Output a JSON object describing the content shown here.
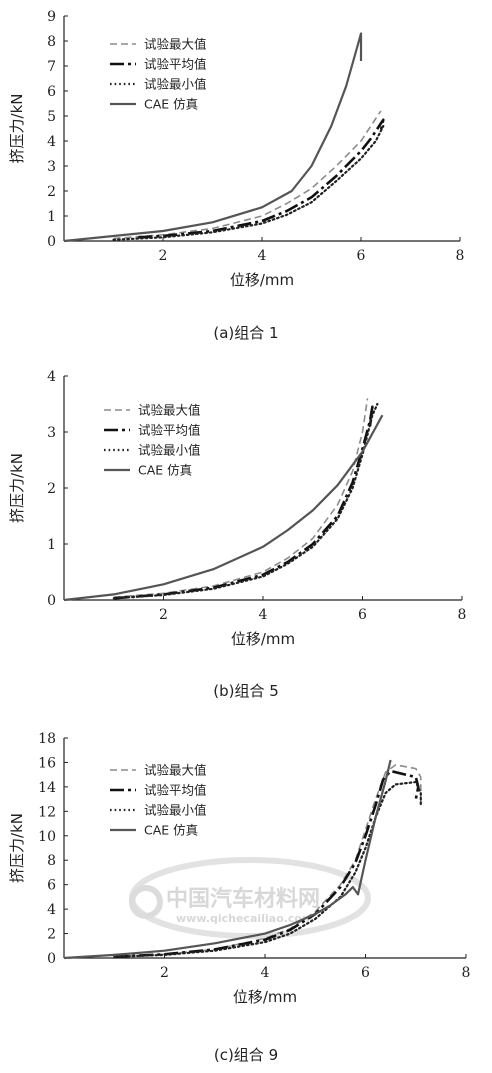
{
  "style": {
    "series_colors": [
      "#8c8c8c",
      "#111111",
      "#222222",
      "#555555"
    ],
    "axis_color": "#222222"
  },
  "watermark": {
    "name": "中国汽车材料网",
    "url": "www.qichecailiao.com",
    "color": "#d8d8d8"
  },
  "chart_data": [
    {
      "type": "line",
      "caption": "(a)组合 1",
      "xlabel": "位移/mm",
      "ylabel": "挤压力/kN",
      "xlim": [
        0,
        8
      ],
      "ylim": [
        0,
        9
      ],
      "xticks": [
        0,
        2,
        4,
        6,
        8
      ],
      "xtick_labels": [
        "",
        "2",
        "4",
        "6",
        "8"
      ],
      "yticks": [
        0,
        1,
        2,
        3,
        4,
        5,
        6,
        7,
        8,
        9
      ],
      "ytick_labels": [
        "0",
        "1",
        "2",
        "3",
        "4",
        "5",
        "6",
        "7",
        "8",
        "9"
      ],
      "legend_position": "top-left",
      "series": [
        {
          "name": "试验最大值",
          "style": "dashed",
          "x": [
            1.0,
            2.0,
            3.0,
            4.0,
            4.5,
            5.0,
            5.5,
            6.0,
            6.3,
            6.4
          ],
          "y": [
            0.1,
            0.25,
            0.5,
            1.0,
            1.5,
            2.1,
            3.0,
            4.0,
            4.9,
            5.2
          ]
        },
        {
          "name": "试验平均值",
          "style": "dashdot",
          "x": [
            1.5,
            2.0,
            3.0,
            4.0,
            4.5,
            5.0,
            5.5,
            6.0,
            6.2,
            6.4,
            6.45,
            6.4
          ],
          "y": [
            0.15,
            0.2,
            0.4,
            0.8,
            1.2,
            1.75,
            2.6,
            3.6,
            4.1,
            4.7,
            4.85,
            4.4
          ]
        },
        {
          "name": "试验最小值",
          "style": "dotted",
          "x": [
            1.0,
            2.0,
            3.0,
            4.0,
            4.5,
            5.0,
            5.5,
            6.0,
            6.3,
            6.45
          ],
          "y": [
            0.05,
            0.15,
            0.35,
            0.7,
            1.05,
            1.55,
            2.4,
            3.3,
            4.0,
            4.6
          ]
        },
        {
          "name": "CAE 仿真",
          "style": "solid",
          "x": [
            0,
            1.0,
            2.0,
            3.0,
            4.0,
            4.6,
            5.0,
            5.4,
            5.7,
            5.9,
            6.0,
            6.0
          ],
          "y": [
            0,
            0.2,
            0.4,
            0.75,
            1.35,
            2.0,
            3.0,
            4.6,
            6.2,
            7.6,
            8.3,
            7.2
          ]
        }
      ]
    },
    {
      "type": "line",
      "caption": "(b)组合 5",
      "xlabel": "位移/mm",
      "ylabel": "挤压力/kN",
      "xlim": [
        0,
        8
      ],
      "ylim": [
        0,
        4
      ],
      "xticks": [
        0,
        2,
        4,
        6,
        8
      ],
      "xtick_labels": [
        "",
        "2",
        "4",
        "6",
        "8"
      ],
      "yticks": [
        0,
        1,
        2,
        3,
        4
      ],
      "ytick_labels": [
        "0",
        "1",
        "2",
        "3",
        "4"
      ],
      "legend_position": "top-left",
      "series": [
        {
          "name": "试验最大值",
          "style": "dashed",
          "x": [
            1.0,
            2.0,
            3.0,
            4.0,
            4.5,
            5.0,
            5.5,
            5.8,
            6.0,
            6.1
          ],
          "y": [
            0.05,
            0.12,
            0.25,
            0.5,
            0.75,
            1.1,
            1.7,
            2.3,
            3.0,
            3.6
          ]
        },
        {
          "name": "试验平均值",
          "style": "dashdot",
          "x": [
            1.0,
            2.0,
            3.0,
            4.0,
            4.5,
            5.0,
            5.5,
            5.8,
            6.0,
            6.15,
            6.2,
            6.15
          ],
          "y": [
            0.03,
            0.1,
            0.22,
            0.45,
            0.68,
            1.0,
            1.5,
            2.1,
            2.7,
            3.2,
            3.45,
            3.1
          ]
        },
        {
          "name": "试验最小值",
          "style": "dotted",
          "x": [
            1.0,
            2.0,
            3.0,
            4.0,
            4.5,
            5.0,
            5.5,
            5.8,
            6.0,
            6.2,
            6.3
          ],
          "y": [
            0.03,
            0.09,
            0.2,
            0.42,
            0.65,
            0.95,
            1.45,
            2.0,
            2.6,
            3.3,
            3.5
          ]
        },
        {
          "name": "CAE 仿真",
          "style": "solid",
          "x": [
            0,
            1.0,
            2.0,
            3.0,
            4.0,
            4.5,
            5.0,
            5.5,
            6.0,
            6.4
          ],
          "y": [
            0,
            0.1,
            0.28,
            0.55,
            0.95,
            1.25,
            1.6,
            2.05,
            2.65,
            3.3
          ]
        }
      ]
    },
    {
      "type": "line",
      "caption": "(c)组合 9",
      "xlabel": "位移/mm",
      "ylabel": "挤压力/kN",
      "xlim": [
        0,
        8
      ],
      "ylim": [
        0,
        18
      ],
      "xticks": [
        0,
        2,
        4,
        6,
        8
      ],
      "xtick_labels": [
        "",
        "2",
        "4",
        "6",
        "8"
      ],
      "yticks": [
        0,
        2,
        4,
        6,
        8,
        10,
        12,
        14,
        16,
        18
      ],
      "ytick_labels": [
        "0",
        "2",
        "4",
        "6",
        "8",
        "10",
        "12",
        "14",
        "16",
        "18"
      ],
      "legend_position": "top-left",
      "series": [
        {
          "name": "试验最大值",
          "style": "dashed",
          "x": [
            1.0,
            2.0,
            3.0,
            4.0,
            4.5,
            5.0,
            5.5,
            5.8,
            6.0,
            6.2,
            6.4,
            6.6,
            7.0,
            7.1,
            7.1
          ],
          "y": [
            0.1,
            0.3,
            0.7,
            1.6,
            2.4,
            3.8,
            6.0,
            8.0,
            10.5,
            13.0,
            15.2,
            15.8,
            15.5,
            14.8,
            12.5
          ]
        },
        {
          "name": "试验平均值",
          "style": "dashdot",
          "x": [
            1.0,
            2.0,
            3.0,
            4.0,
            4.5,
            5.0,
            5.5,
            5.8,
            6.0,
            6.2,
            6.35,
            6.5,
            7.0,
            7.05,
            7.0
          ],
          "y": [
            0.1,
            0.3,
            0.7,
            1.5,
            2.3,
            3.6,
            5.8,
            7.8,
            10.0,
            12.5,
            14.6,
            15.3,
            14.8,
            14.0,
            13.0
          ]
        },
        {
          "name": "试验最小值",
          "style": "dotted",
          "x": [
            1.0,
            2.0,
            3.0,
            4.0,
            4.5,
            5.0,
            5.5,
            5.8,
            6.0,
            6.2,
            6.4,
            6.6,
            7.0,
            7.1,
            7.1
          ],
          "y": [
            0.1,
            0.25,
            0.6,
            1.3,
            2.0,
            3.2,
            5.0,
            7.0,
            9.0,
            11.5,
            13.5,
            14.2,
            14.4,
            13.5,
            12.5
          ]
        },
        {
          "name": "CAE 仿真",
          "style": "solid",
          "x": [
            0,
            1.0,
            2.0,
            3.0,
            4.0,
            4.5,
            5.0,
            5.3,
            5.6,
            5.75,
            5.85,
            6.0,
            6.2,
            6.4,
            6.5
          ],
          "y": [
            0,
            0.25,
            0.6,
            1.2,
            2.0,
            2.7,
            3.6,
            4.3,
            5.2,
            5.8,
            5.2,
            8.0,
            11.5,
            14.5,
            16.2
          ]
        }
      ]
    }
  ]
}
